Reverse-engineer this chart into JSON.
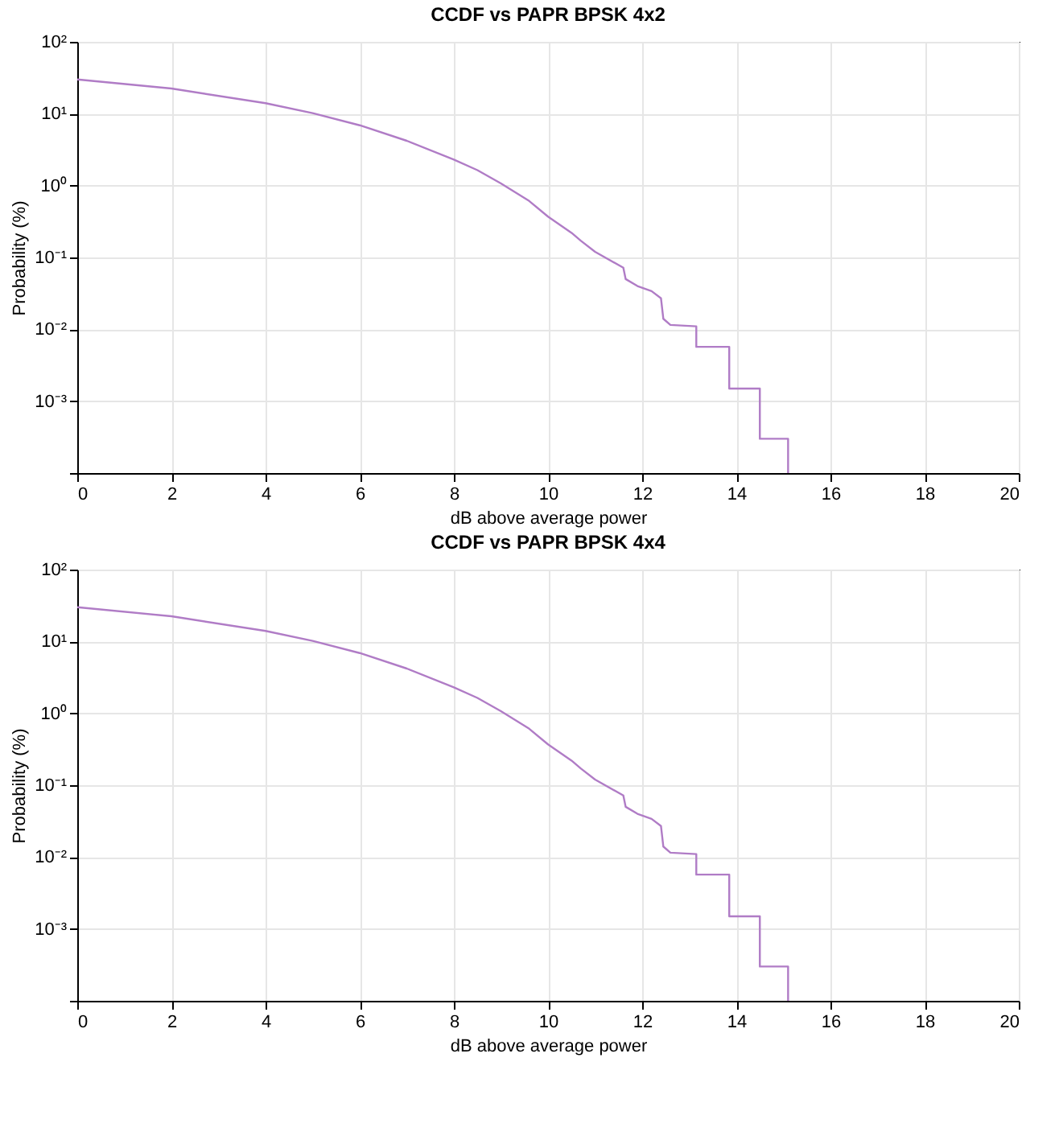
{
  "chart_data": [
    {
      "type": "line",
      "title": "CCDF vs PAPR BPSK 4x2",
      "xlabel": "dB above average power",
      "ylabel": "Probability (%)",
      "log": "y",
      "grid": true,
      "line_style": "solid",
      "x": [
        0,
        2,
        4,
        5,
        6,
        7,
        8,
        8.5,
        9,
        9.6,
        10,
        10.5,
        10.7,
        11,
        11.6,
        11.65,
        11.9,
        12.2,
        12.4,
        12.45,
        12.6,
        13.15,
        13.15,
        13.85,
        13.85,
        14.5,
        14.5,
        15.1,
        15.1
      ],
      "series": [
        {
          "color": "#b07cc6",
          "values": [
            30,
            22.4,
            14,
            10.2,
            6.9,
            4.2,
            2.3,
            1.64,
            1.07,
            0.61,
            0.37,
            0.22,
            0.17,
            0.12,
            0.072,
            0.05,
            0.04,
            0.034,
            0.027,
            0.014,
            0.0115,
            0.011,
            0.0057,
            0.0057,
            0.0015,
            0.0015,
            0.0003,
            0.0003,
            0.0001
          ]
        }
      ],
      "xlim": [
        0,
        20
      ],
      "xticks": [
        0,
        2,
        4,
        6,
        8,
        10,
        12,
        14,
        16,
        18,
        20
      ],
      "ylim": [
        0.0001,
        100
      ],
      "yticks": [
        {
          "value": 0.0001,
          "label": null
        },
        {
          "value": 0.001,
          "label": "10⁻³"
        },
        {
          "value": 0.01,
          "label": "10⁻²"
        },
        {
          "value": 0.1,
          "label": "10⁻¹"
        },
        {
          "value": 1,
          "label": "10⁰"
        },
        {
          "value": 10,
          "label": "10¹"
        },
        {
          "value": 100,
          "label": "10²"
        }
      ]
    },
    {
      "type": "line",
      "title": "CCDF vs PAPR BPSK 4x4",
      "xlabel": "dB above average power",
      "ylabel": "Probability (%)",
      "log": "y",
      "grid": true,
      "line_style": "solid",
      "x": [
        0,
        2,
        4,
        5,
        6,
        7,
        8,
        8.5,
        9,
        9.6,
        10,
        10.5,
        10.7,
        11,
        11.6,
        11.65,
        11.9,
        12.2,
        12.4,
        12.45,
        12.6,
        13.15,
        13.15,
        13.85,
        13.85,
        14.5,
        14.5,
        15.1,
        15.1
      ],
      "series": [
        {
          "color": "#b07cc6",
          "values": [
            30,
            22.4,
            14,
            10.2,
            6.9,
            4.2,
            2.3,
            1.64,
            1.07,
            0.61,
            0.37,
            0.22,
            0.17,
            0.12,
            0.072,
            0.05,
            0.04,
            0.034,
            0.027,
            0.014,
            0.0115,
            0.011,
            0.0057,
            0.0057,
            0.0015,
            0.0015,
            0.0003,
            0.0003,
            0.0001
          ]
        }
      ],
      "xlim": [
        0,
        20
      ],
      "xticks": [
        0,
        2,
        4,
        6,
        8,
        10,
        12,
        14,
        16,
        18,
        20
      ],
      "ylim": [
        0.0001,
        100
      ],
      "yticks": [
        {
          "value": 0.0001,
          "label": null
        },
        {
          "value": 0.001,
          "label": "10⁻³"
        },
        {
          "value": 0.01,
          "label": "10⁻²"
        },
        {
          "value": 0.1,
          "label": "10⁻¹"
        },
        {
          "value": 1,
          "label": "10⁰"
        },
        {
          "value": 10,
          "label": "10¹"
        },
        {
          "value": 100,
          "label": "10²"
        }
      ]
    }
  ]
}
